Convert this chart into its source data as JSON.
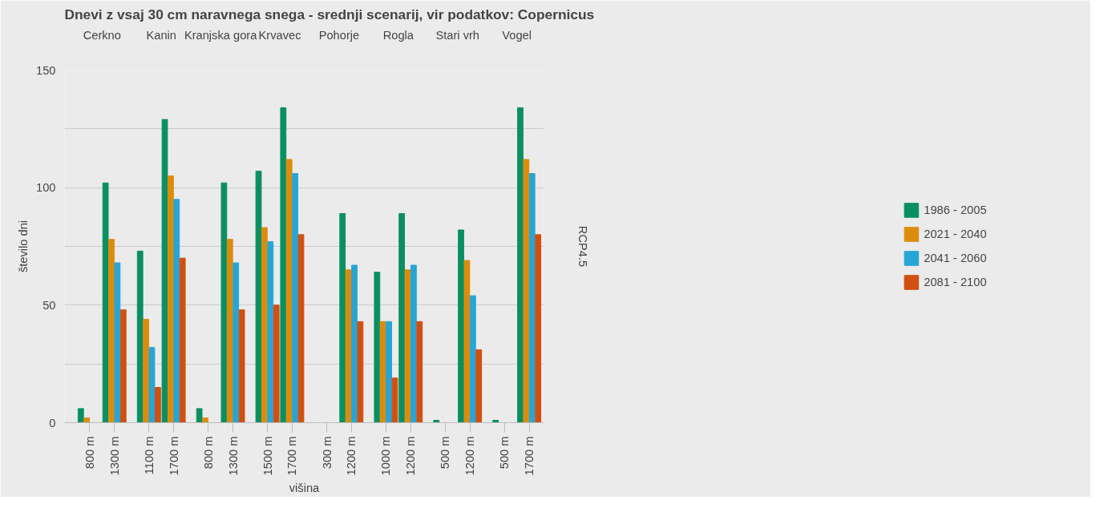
{
  "chart_data": {
    "type": "bar",
    "title": "Dnevi z vsaj 30 cm naravnega snega - srednji scenarij, vir podatkov: Copernicus",
    "xlabel": "višina",
    "ylabel": "število dni",
    "categories": [
      "800 m",
      "1300 m",
      "1100 m",
      "1700 m",
      "800 m",
      "1300 m",
      "1500 m",
      "1700 m",
      "300 m",
      "1200 m",
      "1000 m",
      "1200 m",
      "500 m",
      "1200 m",
      "500 m",
      "1700 m"
    ],
    "annotations": [
      "Cerkno",
      "Kanin",
      "Kranjska gora",
      "Krvavec",
      "Pohorje",
      "Rogla",
      "Stari vrh",
      "Vogel",
      "RCP4.5"
    ],
    "series": [
      {
        "name": "1986 - 2005",
        "color": "#0a8f63",
        "values": [
          6,
          102,
          73,
          129,
          6,
          102,
          107,
          134,
          0,
          89,
          64,
          89,
          1,
          82,
          1,
          134
        ]
      },
      {
        "name": "2021 - 2040",
        "color": "#dc8c0c",
        "values": [
          2,
          78,
          44,
          105,
          2,
          78,
          83,
          112,
          0,
          65,
          43,
          65,
          0,
          69,
          0,
          112
        ]
      },
      {
        "name": "2041 - 2060",
        "color": "#27a5d5",
        "values": [
          0,
          68,
          32,
          95,
          0,
          68,
          77,
          106,
          0,
          67,
          43,
          67,
          0,
          54,
          0,
          106
        ]
      },
      {
        "name": "2081 - 2100",
        "color": "#d05011",
        "values": [
          0,
          48,
          15,
          70,
          0,
          48,
          50,
          80,
          0,
          43,
          19,
          43,
          0,
          31,
          0,
          80
        ]
      }
    ],
    "ylim": [
      0,
      150
    ],
    "yticks": [
      0,
      {
        "value": 25,
        "label": null
      },
      50,
      {
        "value": 75,
        "label": null
      },
      100,
      {
        "value": 125,
        "label": null
      },
      150
    ],
    "grid": "y",
    "legend": "right",
    "marker": "circle"
  }
}
